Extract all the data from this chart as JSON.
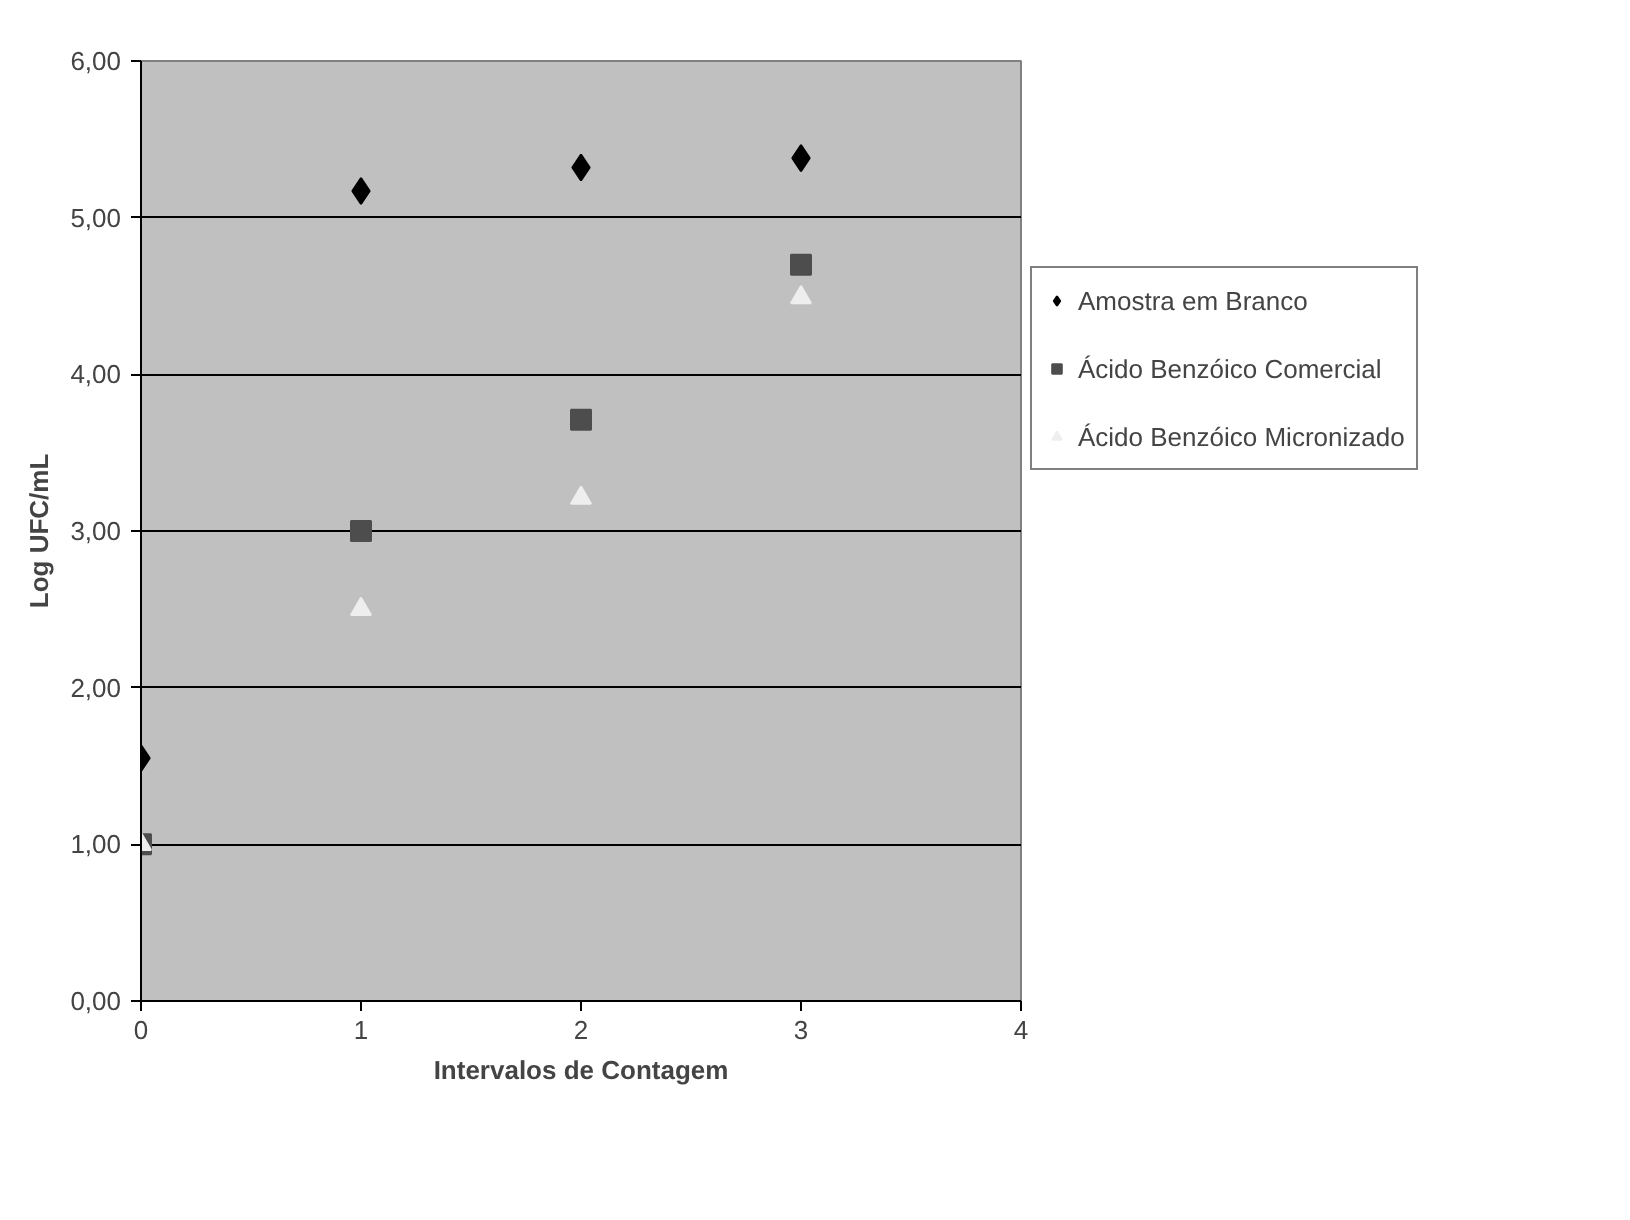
{
  "chart_data": {
    "type": "scatter",
    "xlabel": "Intervalos de Contagem",
    "ylabel": "Log UFC/mL",
    "x": [
      0,
      1,
      2,
      3
    ],
    "series": [
      {
        "name": "Amostra em Branco",
        "color": "#000000",
        "marker": "diamond",
        "values": [
          1.55,
          5.17,
          5.32,
          5.38
        ]
      },
      {
        "name": "Ácido Benzóico Comercial",
        "color": "#4d4d4d",
        "marker": "square",
        "values": [
          1.0,
          3.0,
          3.71,
          4.7
        ]
      },
      {
        "name": "Ácido Benzóico Micronizado",
        "color": "#eeeeee",
        "marker": "triangle",
        "values": [
          1.0,
          2.5,
          3.21,
          4.49
        ]
      }
    ],
    "xlim": [
      0,
      4
    ],
    "xticks": [
      0,
      1,
      2,
      3,
      4
    ],
    "ylim": [
      0,
      6
    ],
    "yticks": [
      {
        "value": 0,
        "label": "0,00"
      },
      {
        "value": 1,
        "label": "1,00"
      },
      {
        "value": 2,
        "label": "2,00"
      },
      {
        "value": 3,
        "label": "3,00"
      },
      {
        "value": 4,
        "label": "4,00"
      },
      {
        "value": 5,
        "label": "5,00"
      },
      {
        "value": 6,
        "label": "6,00"
      }
    ],
    "grid": "y",
    "legend": "right"
  }
}
